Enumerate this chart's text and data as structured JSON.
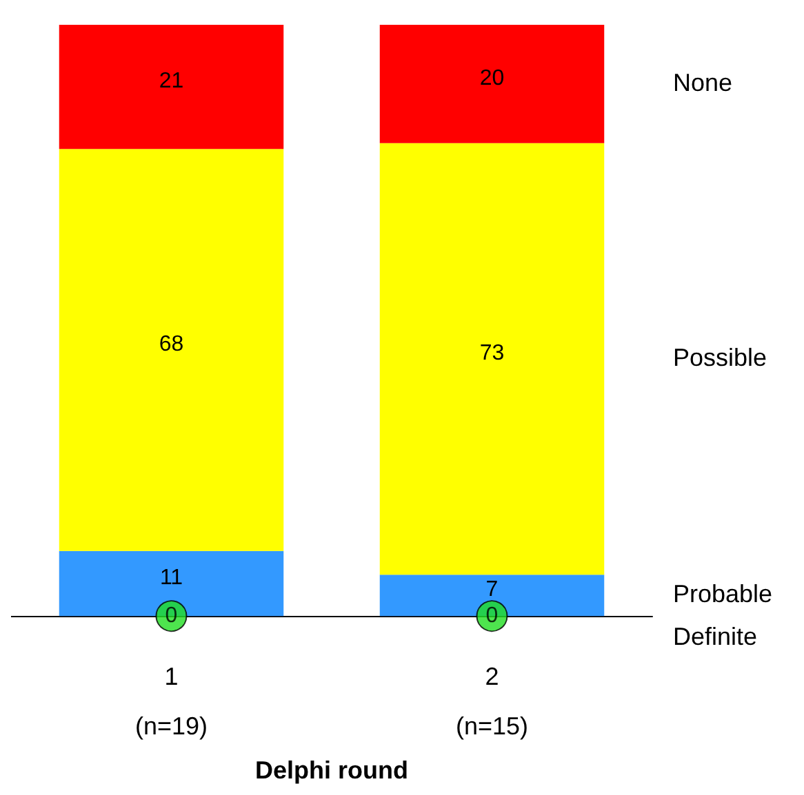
{
  "chart_data": {
    "type": "bar",
    "stacked": true,
    "xlabel": "Delphi round",
    "categories": [
      "1\n(n=19)",
      "2\n(n=15)"
    ],
    "data_labels": true,
    "legend": false,
    "series": [
      {
        "name": "Probable",
        "color": "#3399ff",
        "values": [
          11,
          7
        ]
      },
      {
        "name": "Possible",
        "color": "#ffff00",
        "values": [
          68,
          73
        ]
      },
      {
        "name": "None",
        "color": "#ff0000",
        "values": [
          21,
          20
        ]
      },
      {
        "name": "Definite",
        "type": "scatter",
        "marker": "circle",
        "color": "#22dd22",
        "x": [
          "1\n(n=19)",
          "2\n(n=15)"
        ],
        "values": [
          0,
          0
        ]
      }
    ]
  }
}
